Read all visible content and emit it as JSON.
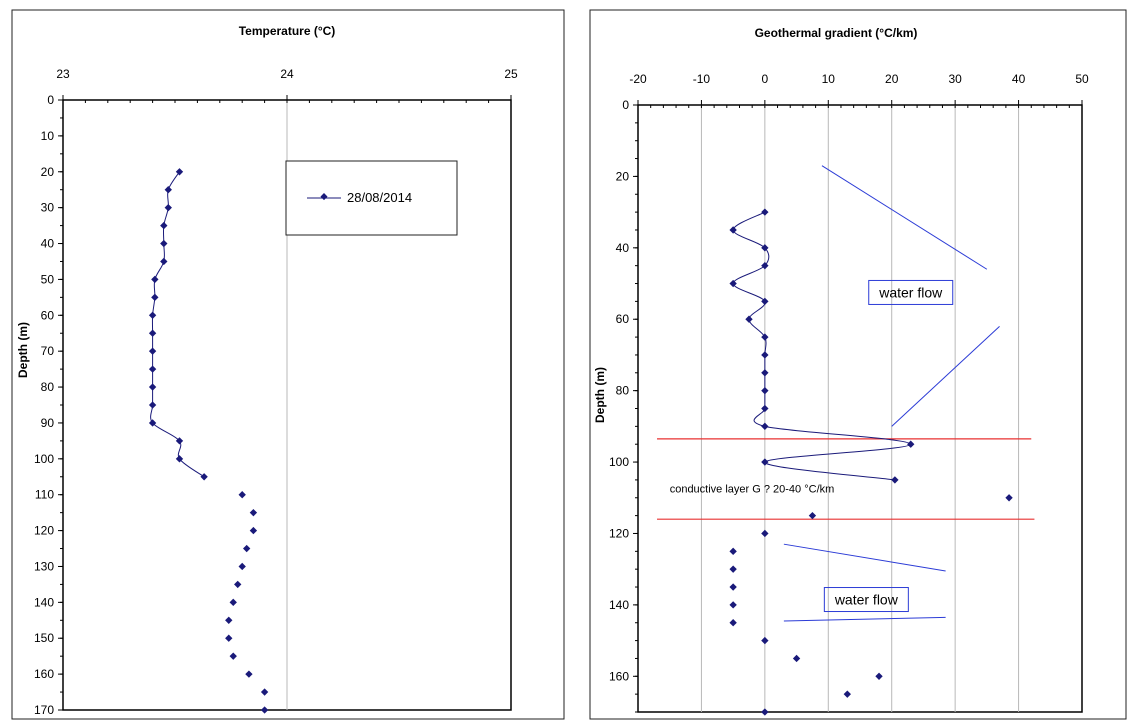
{
  "chart_data": [
    {
      "type": "line",
      "title": "Temperature (°C)",
      "xlabel": "",
      "ylabel": "Depth (m)",
      "xlim": [
        23,
        25
      ],
      "ylim": [
        0,
        170
      ],
      "y_inverted": true,
      "xticks": [
        23,
        24,
        25
      ],
      "yticks": [
        0,
        10,
        20,
        30,
        40,
        50,
        60,
        70,
        80,
        90,
        100,
        110,
        120,
        130,
        140,
        150,
        160,
        170
      ],
      "x_axis_position": "top",
      "grid": true,
      "grid_axis": "vertical",
      "legend_position": "top-right",
      "series": [
        {
          "name": "28/08/2014",
          "color": "#1a1a7a",
          "marker": "diamond",
          "connected_until_depth": 105,
          "points": [
            {
              "x": 23.52,
              "y": 20
            },
            {
              "x": 23.47,
              "y": 25
            },
            {
              "x": 23.47,
              "y": 30
            },
            {
              "x": 23.45,
              "y": 35
            },
            {
              "x": 23.45,
              "y": 40
            },
            {
              "x": 23.45,
              "y": 45
            },
            {
              "x": 23.41,
              "y": 50
            },
            {
              "x": 23.41,
              "y": 55
            },
            {
              "x": 23.4,
              "y": 60
            },
            {
              "x": 23.4,
              "y": 65
            },
            {
              "x": 23.4,
              "y": 70
            },
            {
              "x": 23.4,
              "y": 75
            },
            {
              "x": 23.4,
              "y": 80
            },
            {
              "x": 23.4,
              "y": 85
            },
            {
              "x": 23.4,
              "y": 90
            },
            {
              "x": 23.52,
              "y": 95
            },
            {
              "x": 23.52,
              "y": 100
            },
            {
              "x": 23.63,
              "y": 105
            },
            {
              "x": 23.8,
              "y": 110
            },
            {
              "x": 23.85,
              "y": 115
            },
            {
              "x": 23.85,
              "y": 120
            },
            {
              "x": 23.82,
              "y": 125
            },
            {
              "x": 23.8,
              "y": 130
            },
            {
              "x": 23.78,
              "y": 135
            },
            {
              "x": 23.76,
              "y": 140
            },
            {
              "x": 23.74,
              "y": 145
            },
            {
              "x": 23.74,
              "y": 150
            },
            {
              "x": 23.76,
              "y": 155
            },
            {
              "x": 23.83,
              "y": 160
            },
            {
              "x": 23.9,
              "y": 165
            },
            {
              "x": 23.9,
              "y": 170
            }
          ]
        }
      ]
    },
    {
      "type": "line",
      "title": "Geothermal gradient (°C/km)",
      "xlabel": "",
      "ylabel": "Depth (m)",
      "xlim": [
        -20,
        50
      ],
      "ylim": [
        0,
        170
      ],
      "y_inverted": true,
      "xticks": [
        -20,
        -10,
        0,
        10,
        20,
        30,
        40,
        50
      ],
      "yticks": [
        0,
        20,
        40,
        60,
        80,
        100,
        120,
        140,
        160
      ],
      "x_axis_position": "top",
      "grid": true,
      "grid_axis": "vertical",
      "series": [
        {
          "color": "#1a1a7a",
          "marker": "diamond",
          "connected_until_depth": 105,
          "points": [
            {
              "x": 0,
              "y": 30
            },
            {
              "x": -5,
              "y": 35
            },
            {
              "x": 0,
              "y": 40
            },
            {
              "x": 0,
              "y": 45
            },
            {
              "x": -5,
              "y": 50
            },
            {
              "x": 0,
              "y": 55
            },
            {
              "x": -2.5,
              "y": 60
            },
            {
              "x": 0,
              "y": 65
            },
            {
              "x": 0,
              "y": 70
            },
            {
              "x": 0,
              "y": 75
            },
            {
              "x": 0,
              "y": 80
            },
            {
              "x": 0,
              "y": 85
            },
            {
              "x": 0,
              "y": 90
            },
            {
              "x": 23,
              "y": 95
            },
            {
              "x": 0,
              "y": 100
            },
            {
              "x": 20.5,
              "y": 105
            },
            {
              "x": 38.5,
              "y": 110
            },
            {
              "x": 7.5,
              "y": 115
            },
            {
              "x": 0,
              "y": 120
            },
            {
              "x": -5,
              "y": 125
            },
            {
              "x": -5,
              "y": 130
            },
            {
              "x": -5,
              "y": 135
            },
            {
              "x": -5,
              "y": 140
            },
            {
              "x": -5,
              "y": 145
            },
            {
              "x": 0,
              "y": 150
            },
            {
              "x": 5,
              "y": 155
            },
            {
              "x": 18,
              "y": 160
            },
            {
              "x": 13,
              "y": 165
            },
            {
              "x": 0,
              "y": 170
            }
          ]
        }
      ],
      "reference_lines": [
        {
          "y": 93.5,
          "x_from": -17,
          "x_to": 42,
          "color": "#e83030"
        },
        {
          "y": 116,
          "x_from": -17,
          "x_to": 42.5,
          "color": "#e83030"
        }
      ],
      "flow_lines": [
        {
          "x1": 9,
          "y1": 17,
          "x2": 35,
          "y2": 46,
          "color": "#2b3bd6"
        },
        {
          "x1": 20,
          "y1": 90,
          "x2": 37,
          "y2": 62,
          "color": "#2b3bd6"
        },
        {
          "x1": 3,
          "y1": 123,
          "x2": 28.5,
          "y2": 130.5,
          "color": "#2b3bd6"
        },
        {
          "x1": 3,
          "y1": 144.5,
          "x2": 28.5,
          "y2": 143.5,
          "color": "#2b3bd6"
        }
      ],
      "annotations": [
        {
          "text": "water flow",
          "x": 23,
          "y": 52.5,
          "boxed": true
        },
        {
          "text": "water flow",
          "x": 16,
          "y": 138.5,
          "boxed": true
        },
        {
          "text": "conductive layer  G ? 20-40 °C/km",
          "x": -15,
          "y": 108.5,
          "boxed": false
        }
      ]
    }
  ]
}
